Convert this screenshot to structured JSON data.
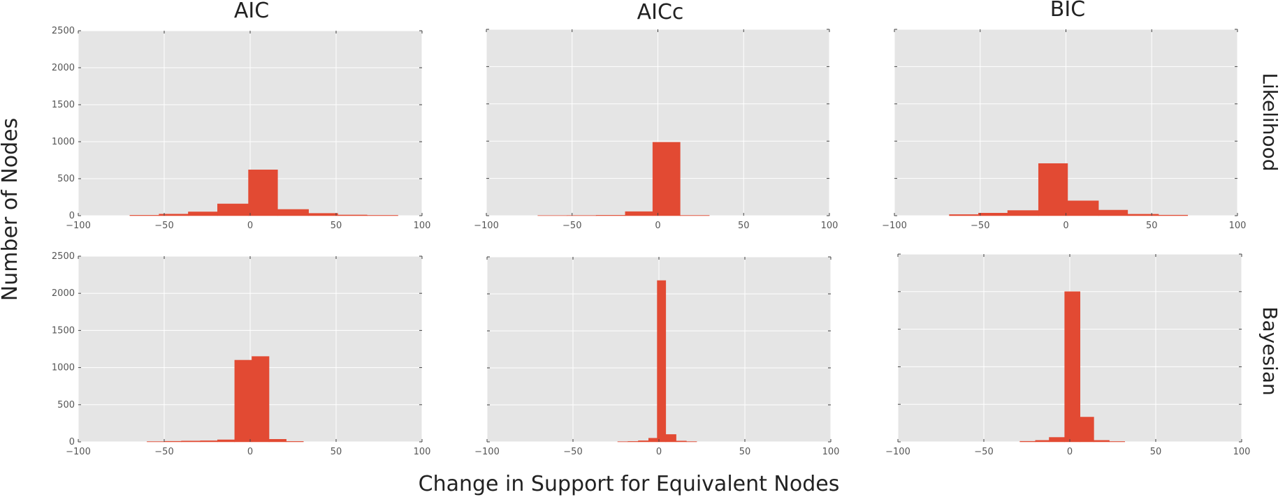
{
  "figure": {
    "xlabel": "Change in Support for Equivalent Nodes",
    "ylabel": "Number of Nodes",
    "columns": [
      "AIC",
      "AICc",
      "BIC"
    ],
    "rows": [
      "Likelihood",
      "Bayesian"
    ],
    "colors": {
      "bar": "#E24A33",
      "panel_bg": "#E5E5E5",
      "grid": "#FFFFFF",
      "text": "#222222",
      "tick": "#555555"
    }
  },
  "chart_data": [
    {
      "type": "bar",
      "panel": "Likelihood-AIC",
      "row": 0,
      "col": 0,
      "xlim": [
        -100,
        100
      ],
      "ylim": [
        0,
        2500
      ],
      "xticks": [
        "−100",
        "−50",
        "0",
        "50",
        "100"
      ],
      "yticks": [
        "0",
        "500",
        "1000",
        "1500",
        "2000",
        "2500"
      ],
      "show_yticklabels": true,
      "bins": [
        [
          -70,
          -53,
          6
        ],
        [
          -53,
          -36,
          22
        ],
        [
          -36,
          -19,
          52
        ],
        [
          -19,
          -1,
          160
        ],
        [
          -1,
          16,
          620
        ],
        [
          16,
          34,
          85
        ],
        [
          34,
          51,
          32
        ],
        [
          51,
          68,
          10
        ],
        [
          68,
          86,
          5
        ]
      ]
    },
    {
      "type": "bar",
      "panel": "Likelihood-AICc",
      "row": 0,
      "col": 1,
      "xlim": [
        -100,
        100
      ],
      "ylim": [
        0,
        2500
      ],
      "xticks": [
        "−100",
        "−50",
        "0",
        "50",
        "100"
      ],
      "yticks": [
        "0",
        "500",
        "1000",
        "1500",
        "2000",
        "2500"
      ],
      "show_yticklabels": false,
      "bins": [
        [
          -70,
          -53,
          2
        ],
        [
          -53,
          -36,
          3
        ],
        [
          -36,
          -19,
          6
        ],
        [
          -19,
          -3,
          55
        ],
        [
          -3,
          13,
          985
        ],
        [
          13,
          30,
          4
        ]
      ]
    },
    {
      "type": "bar",
      "panel": "Likelihood-BIC",
      "row": 0,
      "col": 2,
      "xlim": [
        -100,
        100
      ],
      "ylim": [
        0,
        2500
      ],
      "xticks": [
        "−100",
        "−50",
        "0",
        "50",
        "100"
      ],
      "yticks": [
        "0",
        "500",
        "1000",
        "1500",
        "2000",
        "2500"
      ],
      "show_yticklabels": false,
      "bins": [
        [
          -68,
          -51,
          15
        ],
        [
          -51,
          -34,
          35
        ],
        [
          -34,
          -16,
          70
        ],
        [
          -16,
          1,
          700
        ],
        [
          1,
          19,
          200
        ],
        [
          19,
          36,
          75
        ],
        [
          36,
          54,
          20
        ],
        [
          54,
          71,
          8
        ]
      ]
    },
    {
      "type": "bar",
      "panel": "Bayesian-AIC",
      "row": 1,
      "col": 0,
      "xlim": [
        -100,
        100
      ],
      "ylim": [
        0,
        2500
      ],
      "xticks": [
        "−100",
        "−50",
        "0",
        "50",
        "100"
      ],
      "yticks": [
        "0",
        "500",
        "1000",
        "1500",
        "2000",
        "2500"
      ],
      "show_yticklabels": true,
      "bins": [
        [
          -60,
          -50,
          4
        ],
        [
          -50,
          -40,
          8
        ],
        [
          -40,
          -29,
          12
        ],
        [
          -29,
          -19,
          15
        ],
        [
          -19,
          -9,
          28
        ],
        [
          -9,
          1,
          1100
        ],
        [
          1,
          11,
          1150
        ],
        [
          11,
          21,
          35
        ],
        [
          21,
          31,
          6
        ]
      ]
    },
    {
      "type": "bar",
      "panel": "Bayesian-AICc",
      "row": 1,
      "col": 1,
      "xlim": [
        -100,
        100
      ],
      "ylim": [
        0,
        2500
      ],
      "xticks": [
        "−100",
        "−50",
        "0",
        "50",
        "100"
      ],
      "yticks": [
        "0",
        "500",
        "1000",
        "1500",
        "2000",
        "2500"
      ],
      "show_yticklabels": false,
      "bins": [
        [
          -24,
          -18,
          3
        ],
        [
          -18,
          -12,
          6
        ],
        [
          -12,
          -6,
          15
        ],
        [
          -6,
          -1,
          50
        ],
        [
          -1,
          4,
          2180
        ],
        [
          4,
          10,
          100
        ],
        [
          10,
          16,
          12
        ],
        [
          16,
          22,
          4
        ]
      ]
    },
    {
      "type": "bar",
      "panel": "Bayesian-BIC",
      "row": 1,
      "col": 2,
      "xlim": [
        -100,
        100
      ],
      "ylim": [
        0,
        2500
      ],
      "xticks": [
        "−100",
        "−50",
        "0",
        "50",
        "100"
      ],
      "yticks": [
        "0",
        "500",
        "1000",
        "1500",
        "2000",
        "2500"
      ],
      "show_yticklabels": false,
      "bins": [
        [
          -29,
          -20,
          8
        ],
        [
          -20,
          -12,
          20
        ],
        [
          -12,
          -3,
          60
        ],
        [
          -3,
          6,
          2000
        ],
        [
          6,
          14,
          330
        ],
        [
          14,
          23,
          20
        ],
        [
          23,
          32,
          5
        ]
      ]
    }
  ]
}
